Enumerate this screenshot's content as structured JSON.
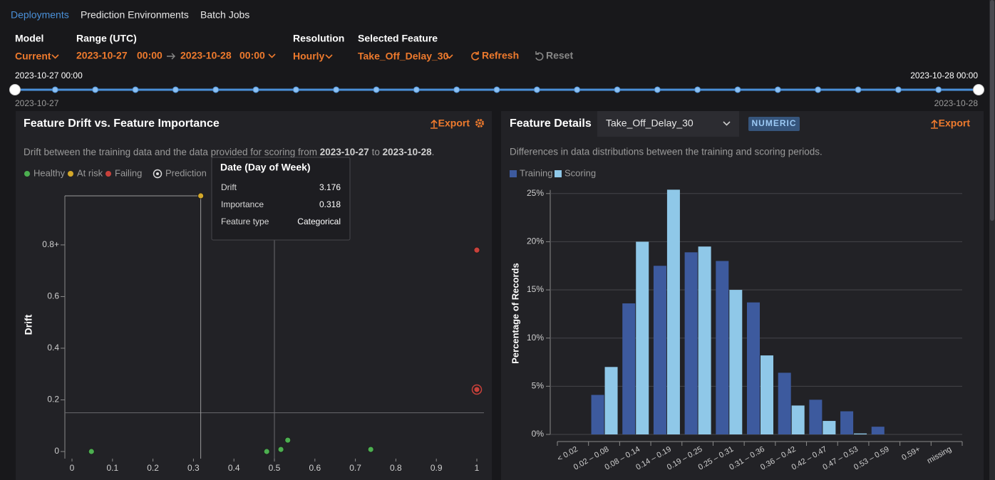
{
  "nav": {
    "tabs": [
      "Deployments",
      "Prediction Environments",
      "Batch Jobs"
    ]
  },
  "filters": {
    "model_label": "Model",
    "model": "Current",
    "range_label": "Range (UTC)",
    "range_start_date": "2023-10-27",
    "range_start_time": "00:00",
    "range_end_date": "2023-10-28",
    "range_end_time": "00:00",
    "resolution_label": "Resolution",
    "resolution": "Hourly",
    "feature_label": "Selected Feature",
    "feature": "Take_Off_Delay_30",
    "refresh": "Refresh",
    "reset": "Reset"
  },
  "timeline": {
    "start_label": "2023-10-27 00:00",
    "end_label": "2023-10-28 00:00",
    "start_date": "2023-10-27",
    "end_date": "2023-10-28"
  },
  "drift_panel": {
    "title": "Feature Drift vs. Feature Importance",
    "export": "Export",
    "description": [
      "Drift between the training data and the data provided for scoring from ",
      "2023-10-27",
      " to ",
      "2023-10-28",
      "."
    ],
    "tooltip": {
      "title": "Date (Day of Week)",
      "rows": [
        [
          "Drift",
          3.176
        ],
        [
          "Importance",
          0.318
        ],
        [
          "Feature type",
          "Categorical"
        ]
      ]
    }
  },
  "details_panel": {
    "title": "Feature Details",
    "feature": "Take_Off_Delay_30",
    "badge": "NUMERIC",
    "export": "Export",
    "description": "Differences in data distributions between the training and scoring periods."
  },
  "chart_data": [
    {
      "type": "scatter",
      "y_label": "Drift",
      "xlim": [
        0,
        1
      ],
      "xticks": [
        0,
        0.1,
        0.2,
        0.3,
        0.4,
        0.5,
        0.6,
        0.7,
        0.8,
        0.9,
        1
      ],
      "ylim": [
        0,
        0.99
      ],
      "yticks": [
        0,
        0.2,
        0.4,
        0.6,
        {
          "value": 0.8,
          "label": "0.8+"
        }
      ],
      "drift_threshold": 0.15,
      "importance_threshold": 0.5,
      "series": [
        {
          "name": "Healthy",
          "color": "#4caf50",
          "marker": "dot",
          "x": [
            0.048,
            0.481,
            0.516,
            0.533,
            0.738
          ],
          "values": [
            0,
            0,
            0.008,
            0.044,
            0.008
          ]
        },
        {
          "name": "At risk",
          "color": "#d4a82a",
          "marker": "dot",
          "x": [
            0.318
          ],
          "values": [
            0.99
          ]
        },
        {
          "name": "Failing",
          "color": "#c8413b",
          "marker": "dot",
          "x": [
            1,
            1
          ],
          "values": [
            0.78,
            0.24
          ]
        },
        {
          "name": "Prediction",
          "color": "#c8413b",
          "marker": "ring",
          "x": [
            1
          ],
          "values": [
            0.24
          ]
        }
      ]
    },
    {
      "type": "bar",
      "y_label": "Percentage of Records",
      "categories": [
        "< 0.02",
        "0.02 – 0.08",
        "0.08 – 0.14",
        "0.14 – 0.19",
        "0.19 – 0.25",
        "0.25 – 0.31",
        "0.31 – 0.36",
        "0.36 – 0.42",
        "0.42 – 0.47",
        "0.47 – 0.53",
        "0.53 – 0.59",
        "0.59+",
        "missing"
      ],
      "ylim": [
        0,
        25.5
      ],
      "yticks": [
        {
          "value": 0,
          "label": "0%"
        },
        {
          "value": 5,
          "label": "5%"
        },
        {
          "value": 10,
          "label": "10%"
        },
        {
          "value": 15,
          "label": "15%"
        },
        {
          "value": 20,
          "label": "20%"
        },
        {
          "value": 25,
          "label": "25%"
        }
      ],
      "grid": true,
      "series": [
        {
          "name": "Training",
          "color": "#3d5a9e",
          "values": [
            0,
            4.1,
            13.6,
            17.5,
            18.9,
            18.0,
            13.7,
            6.4,
            3.6,
            2.4,
            0.8,
            0,
            0
          ]
        },
        {
          "name": "Scoring",
          "color": "#8fc8e8",
          "values": [
            0,
            7.0,
            20.0,
            25.4,
            19.5,
            15.0,
            8.2,
            3.0,
            1.4,
            0.1,
            0,
            0,
            0
          ]
        }
      ]
    }
  ]
}
